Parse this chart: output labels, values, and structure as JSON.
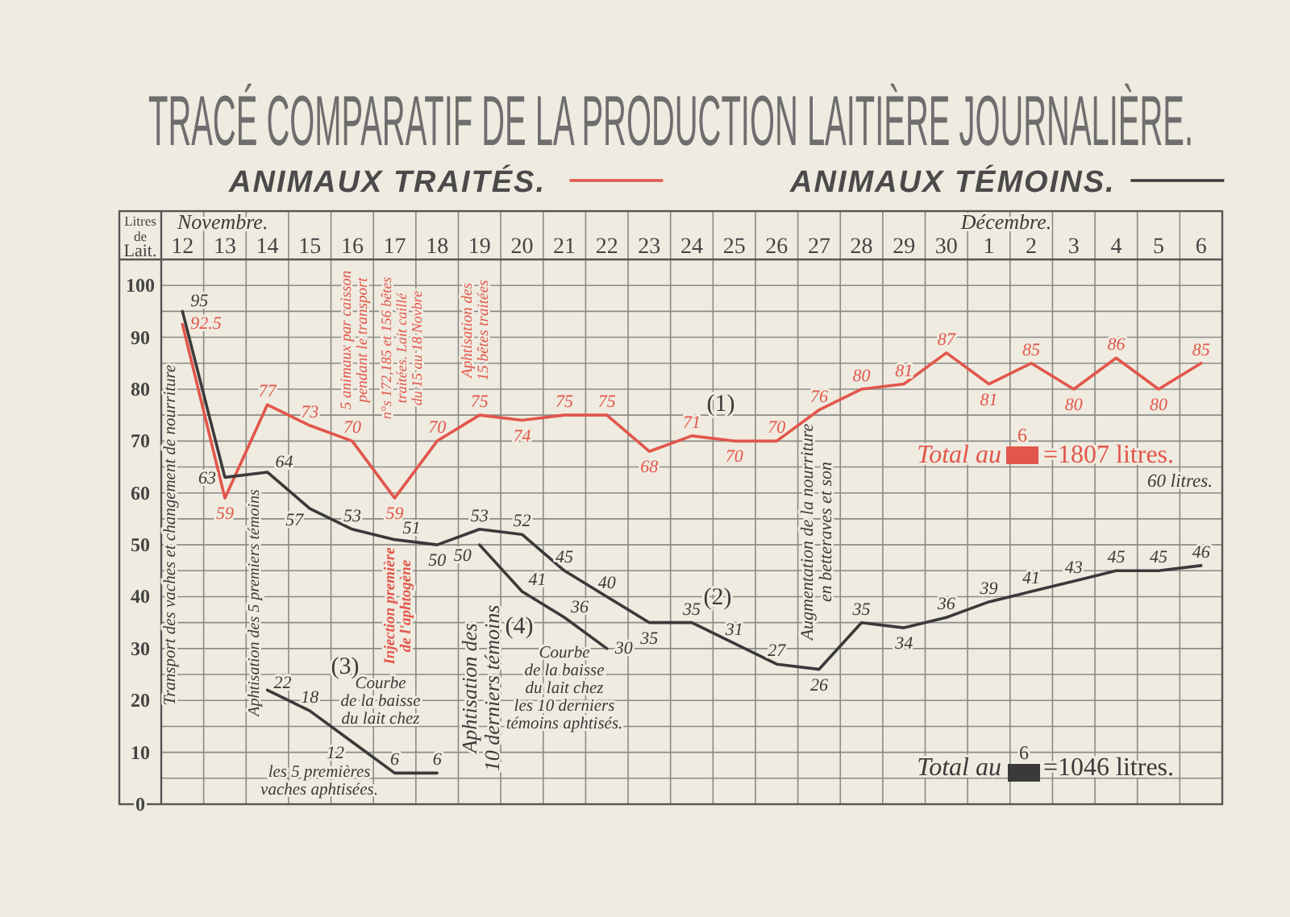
{
  "chart_data": {
    "type": "line",
    "title": "TRACÉ COMPARATIF DE LA PRODUCTION LAITIÈRE JOURNALIÈRE.",
    "ylabel": "Litres de Lait.",
    "categories": [
      "12",
      "13",
      "14",
      "15",
      "16",
      "17",
      "18",
      "19",
      "20",
      "21",
      "22",
      "23",
      "24",
      "25",
      "26",
      "27",
      "28",
      "29",
      "30",
      "1",
      "2",
      "3",
      "4",
      "5",
      "6"
    ],
    "series": [
      {
        "name": "ANIMAUX TRAITÉS.",
        "color": "#e2564b",
        "values": [
          92.5,
          59,
          77,
          73,
          70,
          59,
          70,
          75,
          74,
          75,
          75,
          68,
          71,
          70,
          70,
          76,
          80,
          81,
          87,
          81,
          85,
          80,
          86,
          80,
          85
        ]
      },
      {
        "name": "ANIMAUX TÉMOINS.",
        "color": "#3a3a3a",
        "values": [
          95,
          63,
          64,
          57,
          53,
          51,
          50,
          53,
          52,
          45,
          40,
          35,
          35,
          31,
          27,
          26,
          35,
          34,
          36,
          39,
          41,
          43,
          45,
          45,
          46
        ]
      },
      {
        "color": "#3a3a3a",
        "values": [
          null,
          null,
          22,
          18,
          12,
          6,
          6,
          null,
          null,
          null,
          null,
          null,
          null,
          null,
          null,
          null,
          null,
          null,
          null,
          null,
          null,
          null,
          null,
          null,
          null
        ]
      },
      {
        "color": "#3a3a3a",
        "values": [
          null,
          null,
          null,
          null,
          null,
          null,
          null,
          50,
          41,
          36,
          30,
          null,
          null,
          null,
          null,
          null,
          null,
          null,
          null,
          null,
          null,
          null,
          null,
          null,
          null
        ]
      }
    ],
    "ylim": [
      0,
      105
    ],
    "yticks": [
      0,
      {
        "value": 5,
        "label": null
      },
      10,
      {
        "value": 15,
        "label": null
      },
      20,
      {
        "value": 25,
        "label": null
      },
      30,
      {
        "value": 35,
        "label": null
      },
      40,
      {
        "value": 45,
        "label": null
      },
      50,
      {
        "value": 55,
        "label": null
      },
      60,
      {
        "value": 65,
        "label": null
      },
      70,
      {
        "value": 75,
        "label": null
      },
      80,
      {
        "value": 85,
        "label": null
      },
      90,
      {
        "value": 95,
        "label": null
      },
      100
    ],
    "grid": true,
    "legend": "top",
    "data_labels": true,
    "annotations": [
      "Novembre.",
      "Décembre.",
      "Transport des vaches et changement de nourriture",
      "Aphtisation des 5 premiers témoins",
      "5 animaux par caisson pendant le transport",
      "n°s 172,185 et 156 bêtes traitées. Lait caillé du 15 au 18 Novbre",
      "Aphtisation des 15 bêtes traitées",
      "Injection première de l'aphtogène",
      "Aphtisation des 10 derniers témoins",
      "Augmentation de la nourriture en betteraves et son",
      "(1)",
      "(2)",
      "(3)",
      "(4)",
      "Courbe de la baisse du lait chez",
      "les 5 premières vaches aphtisées.",
      "Courbe de la baisse du lait chez les 10 derniers témoins aphtisés.",
      "Total au",
      "6",
      "=1807 litres.",
      "60 litres.",
      "Total au",
      "6",
      "=1046 litres."
    ]
  }
}
